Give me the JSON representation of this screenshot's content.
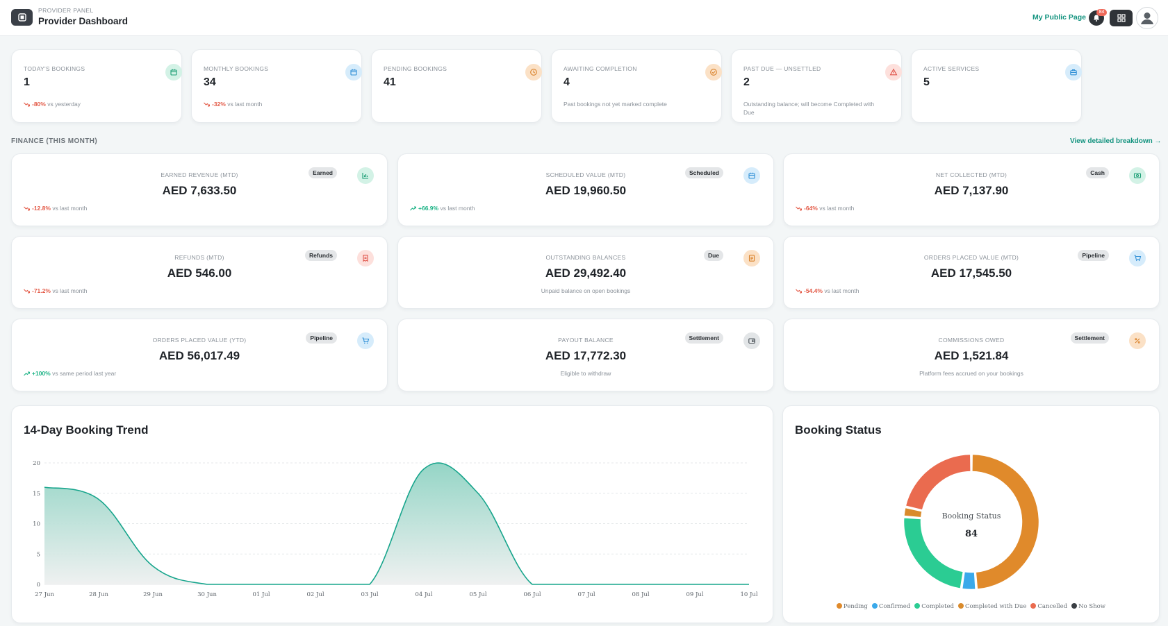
{
  "header": {
    "kicker": "PROVIDER PANEL",
    "title": "Provider Dashboard",
    "public_page_link": "My Public Page",
    "notification_count": "84"
  },
  "stats": [
    {
      "label": "TODAY'S BOOKINGS",
      "value": "1",
      "delta": "-80%",
      "delta_dir": "down",
      "note": "vs yesterday",
      "icon": "calendar-icon",
      "color": "green"
    },
    {
      "label": "MONTHLY BOOKINGS",
      "value": "34",
      "delta": "-32%",
      "delta_dir": "down",
      "note": "vs last month",
      "icon": "calendar-icon",
      "color": "blue"
    },
    {
      "label": "PENDING BOOKINGS",
      "value": "41",
      "delta": "",
      "note": "",
      "icon": "clock-icon",
      "color": "orange"
    },
    {
      "label": "AWAITING COMPLETION",
      "value": "4",
      "delta": "",
      "note": "Past bookings not yet marked complete",
      "icon": "check-circle-icon",
      "color": "orange"
    },
    {
      "label": "PAST DUE — UNSETTLED",
      "value": "2",
      "delta": "",
      "note": "Outstanding balance; will become Completed with Due",
      "icon": "alert-triangle-icon",
      "color": "red"
    },
    {
      "label": "ACTIVE SERVICES",
      "value": "5",
      "delta": "",
      "note": "",
      "icon": "briefcase-icon",
      "color": "blue"
    }
  ],
  "finance": {
    "section_label": "FINANCE (THIS MONTH)",
    "breakdown_link": "View detailed breakdown →",
    "cards": [
      {
        "label": "EARNED REVENUE (MTD)",
        "value": "AED 7,633.50",
        "pill": "Earned",
        "delta": "-12.8%",
        "delta_dir": "down",
        "note": "vs last month",
        "icon": "chart-icon",
        "color": "green"
      },
      {
        "label": "SCHEDULED VALUE (MTD)",
        "value": "AED 19,960.50",
        "pill": "Scheduled",
        "delta": "+66.9%",
        "delta_dir": "up",
        "note": "vs last month",
        "icon": "calendar-icon",
        "color": "blue"
      },
      {
        "label": "NET COLLECTED (MTD)",
        "value": "AED 7,137.90",
        "pill": "Cash",
        "delta": "-64%",
        "delta_dir": "down",
        "note": "vs last month",
        "icon": "cash-icon",
        "color": "green"
      },
      {
        "label": "REFUNDS (MTD)",
        "value": "AED 546.00",
        "pill": "Refunds",
        "delta": "-71.2%",
        "delta_dir": "down",
        "note": "vs last month",
        "icon": "receipt-icon",
        "color": "red"
      },
      {
        "label": "OUTSTANDING BALANCES",
        "value": "AED 29,492.40",
        "pill": "Due",
        "delta": "",
        "note": "Unpaid balance on open bookings",
        "icon": "document-icon",
        "color": "orange"
      },
      {
        "label": "ORDERS PLACED VALUE (MTD)",
        "value": "AED 17,545.50",
        "pill": "Pipeline",
        "delta": "-54.4%",
        "delta_dir": "down",
        "note": "vs last month",
        "icon": "cart-icon",
        "color": "blue"
      },
      {
        "label": "ORDERS PLACED VALUE (YTD)",
        "value": "AED 56,017.49",
        "pill": "Pipeline",
        "delta": "+100%",
        "delta_dir": "up",
        "note": "vs same period last year",
        "icon": "cart-icon",
        "color": "blue"
      },
      {
        "label": "PAYOUT BALANCE",
        "value": "AED 17,772.30",
        "pill": "Settlement",
        "delta": "",
        "note": "Eligible to withdraw",
        "icon": "wallet-icon",
        "color": "gray"
      },
      {
        "label": "COMMISSIONS OWED",
        "value": "AED 1,521.84",
        "pill": "Settlement",
        "delta": "",
        "note": "Platform fees accrued on your bookings",
        "icon": "percent-icon",
        "color": "orange"
      }
    ]
  },
  "colors": {
    "accent": "#13937f",
    "trend_line": "#17a58c",
    "delta_down": "#e35a47",
    "delta_up": "#1db386"
  },
  "chart_data": [
    {
      "type": "area",
      "title": "14-Day Booking Trend",
      "categories": [
        "27 Jun",
        "28 Jun",
        "29 Jun",
        "30 Jun",
        "01 Jul",
        "02 Jul",
        "03 Jul",
        "04 Jul",
        "05 Jul",
        "06 Jul",
        "07 Jul",
        "08 Jul",
        "09 Jul",
        "10 Jul"
      ],
      "values": [
        16,
        14,
        3,
        0,
        0,
        0,
        0,
        19,
        15,
        0,
        0,
        0,
        0,
        0
      ],
      "yticks": [
        0,
        5,
        10,
        15,
        20
      ],
      "ylim": [
        0,
        20
      ],
      "grid": true
    },
    {
      "type": "pie",
      "title": "Booking Status",
      "center_label": "Booking Status",
      "center_value": "84",
      "legend_position": "bottom",
      "series": [
        {
          "name": "Pending",
          "value": 41,
          "color": "#e08a2b"
        },
        {
          "name": "Confirmed",
          "value": 3,
          "color": "#3aa9ea"
        },
        {
          "name": "Completed",
          "value": 20,
          "color": "#2bcc93"
        },
        {
          "name": "Completed with Due",
          "value": 2,
          "color": "#d98b2c"
        },
        {
          "name": "Cancelled",
          "value": 18,
          "color": "#ea6b4f"
        },
        {
          "name": "No Show",
          "value": 0,
          "color": "#3a3f44"
        }
      ]
    }
  ]
}
